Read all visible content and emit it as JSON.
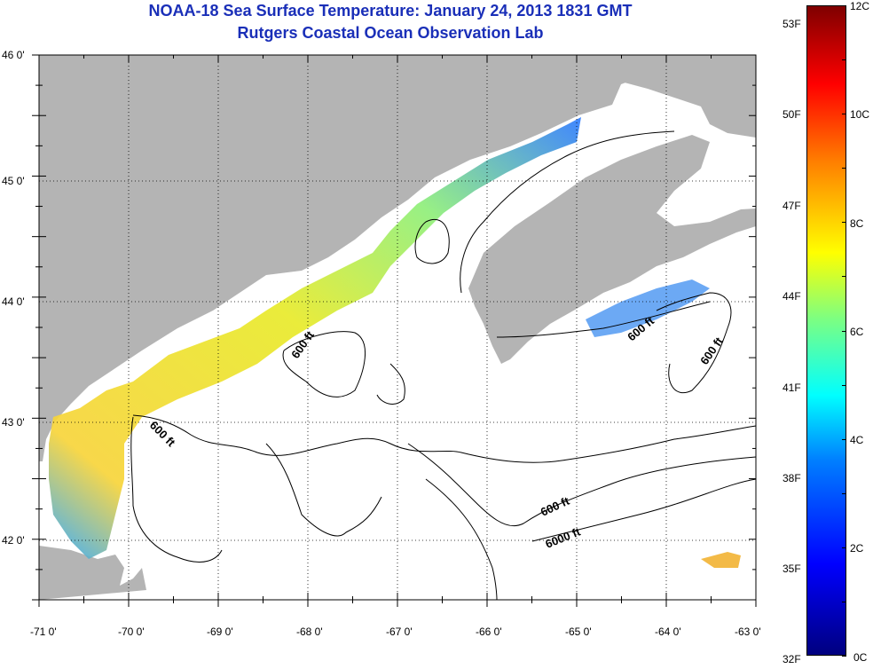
{
  "title": "NOAA-18 Sea Surface Temperature:  January 24, 2013 1831 GMT",
  "subtitle": "Rutgers Coastal Ocean Observation Lab",
  "map": {
    "lon_range": [
      -71,
      -63
    ],
    "lat_range": [
      41.5,
      46
    ],
    "lon_ticks": [
      "-71 0'",
      "-70 0'",
      "-69 0'",
      "-68 0'",
      "-67 0'",
      "-66 0'",
      "-65 0'",
      "-64 0'",
      "-63 0'"
    ],
    "lat_ticks": [
      "46 0'",
      "45 0'",
      "44 0'",
      "43 0'",
      "42 0'"
    ],
    "contour_labels": [
      "600 ft",
      "600 ft",
      "600 ft",
      "600 ft",
      "600 ft",
      "6000 ft"
    ],
    "colors": {
      "land": "#b4b4b4",
      "no_data": "#ffffff",
      "contour": "#000000"
    }
  },
  "colorbar": {
    "fahrenheit": [
      "53F",
      "50F",
      "47F",
      "44F",
      "41F",
      "38F",
      "35F",
      "32F"
    ],
    "celsius": [
      "12C",
      "10C",
      "8C",
      "6C",
      "4C",
      "2C",
      "0C"
    ],
    "scale": "jet",
    "range_c": [
      0,
      12
    ]
  }
}
